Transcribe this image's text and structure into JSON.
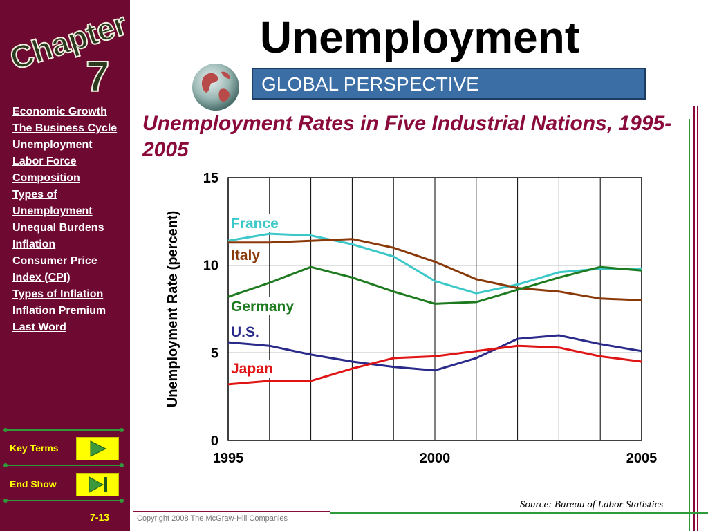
{
  "logo": {
    "chapter": "Chapter",
    "number": "7"
  },
  "title": "Unemployment",
  "banner": "GLOBAL PERSPECTIVE",
  "subtitle": "Unemployment Rates in Five Industrial Nations, 1995-2005",
  "sidebar": {
    "items": [
      {
        "label": "Economic Growth"
      },
      {
        "label": "The Business Cycle"
      },
      {
        "label": "Unemployment"
      },
      {
        "label": "Labor Force Composition"
      },
      {
        "label": "Types of Unemployment"
      },
      {
        "label": "Unequal Burdens"
      },
      {
        "label": "Inflation"
      },
      {
        "label": "Consumer Price Index (CPI)"
      },
      {
        "label": "Types of Inflation"
      },
      {
        "label": "Inflation Premium"
      },
      {
        "label": "Last Word"
      }
    ],
    "key_terms_label": "Key Terms",
    "end_show_label": "End Show"
  },
  "page_number": "7-13",
  "copyright": "Copyright 2008 The McGraw-Hill Companies",
  "source": "Source: Bureau of Labor Statistics",
  "colors": {
    "sidebar": "#6e0a32",
    "accent": "#8a0a3c",
    "banner": "#3a6ea5",
    "button": "#ffff00"
  },
  "chart_data": {
    "type": "line",
    "title": "",
    "xlabel": "",
    "ylabel": "Unemployment Rate (percent)",
    "xlim": [
      1995,
      2005
    ],
    "ylim": [
      0,
      15
    ],
    "x_tick_labels": [
      "1995",
      "2000",
      "2005"
    ],
    "y_tick_labels": [
      "0",
      "5",
      "10",
      "15"
    ],
    "grid": true,
    "x": [
      1995,
      1996,
      1997,
      1998,
      1999,
      2000,
      2001,
      2002,
      2003,
      2004,
      2005
    ],
    "series": [
      {
        "name": "France",
        "color": "#3cc8c8",
        "values": [
          11.4,
          11.8,
          11.7,
          11.2,
          10.5,
          9.1,
          8.4,
          8.9,
          9.6,
          9.8,
          9.8
        ]
      },
      {
        "name": "Italy",
        "color": "#8a3a0a",
        "values": [
          11.3,
          11.3,
          11.4,
          11.5,
          11.0,
          10.2,
          9.2,
          8.7,
          8.5,
          8.1,
          8.0
        ]
      },
      {
        "name": "Germany",
        "color": "#1e7a1e",
        "values": [
          8.2,
          9.0,
          9.9,
          9.3,
          8.5,
          7.8,
          7.9,
          8.6,
          9.3,
          9.9,
          9.7
        ]
      },
      {
        "name": "U.S.",
        "color": "#2a2a8a",
        "values": [
          5.6,
          5.4,
          4.9,
          4.5,
          4.2,
          4.0,
          4.7,
          5.8,
          6.0,
          5.5,
          5.1
        ]
      },
      {
        "name": "Japan",
        "color": "#e01414",
        "values": [
          3.2,
          3.4,
          3.4,
          4.1,
          4.7,
          4.8,
          5.1,
          5.4,
          5.3,
          4.8,
          4.5
        ]
      }
    ]
  }
}
